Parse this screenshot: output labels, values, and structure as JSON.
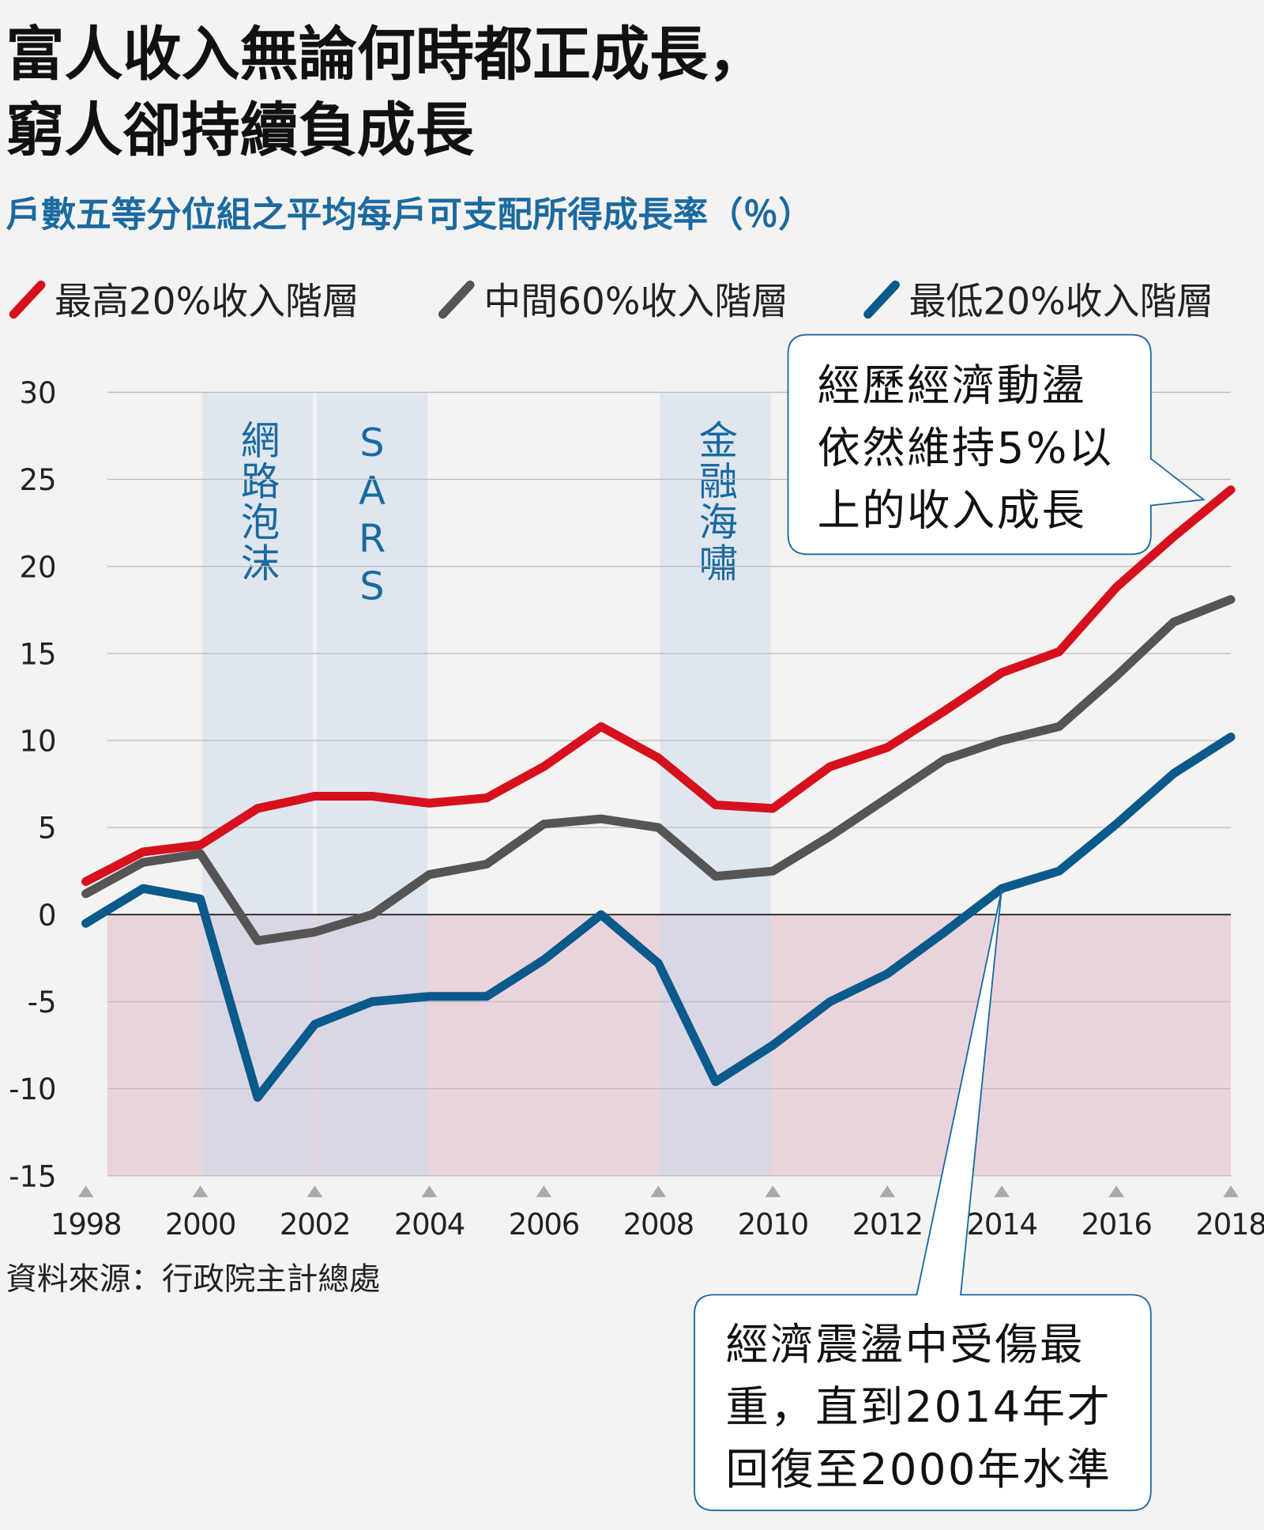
{
  "chart_data": {
    "type": "line",
    "title": [
      "富人收入無論何時都正成長，",
      "窮人卻持續負成長"
    ],
    "subtitle": "戶數五等分位組之平均每戶可支配所得成長率（％）",
    "x": [
      1998,
      1999,
      2000,
      2001,
      2002,
      2003,
      2004,
      2005,
      2006,
      2007,
      2008,
      2009,
      2010,
      2011,
      2012,
      2013,
      2014,
      2015,
      2016,
      2017,
      2018
    ],
    "series": [
      {
        "name": "最高20%收入階層",
        "color": "#d7101e",
        "values": [
          1.9,
          3.6,
          4.0,
          6.1,
          6.8,
          6.8,
          6.4,
          6.7,
          8.5,
          10.8,
          9.0,
          6.3,
          6.1,
          8.5,
          9.6,
          11.7,
          13.9,
          15.1,
          18.8,
          21.7,
          24.4
        ]
      },
      {
        "name": "中間60%收入階層",
        "color": "#555555",
        "values": [
          1.2,
          3.0,
          3.5,
          -1.5,
          -1.0,
          0,
          2.3,
          2.9,
          5.2,
          5.5,
          5.0,
          2.2,
          2.5,
          4.5,
          6.7,
          8.9,
          10.0,
          10.8,
          13.7,
          16.8,
          18.1
        ]
      },
      {
        "name": "最低20%收入階層",
        "color": "#0a5a8c",
        "values": [
          -0.5,
          1.5,
          0.9,
          -10.5,
          -6.3,
          -5.0,
          -4.7,
          -4.7,
          -2.6,
          0,
          -2.8,
          -9.6,
          -7.5,
          -5.0,
          -3.4,
          -1.0,
          1.5,
          2.5,
          5.2,
          8.1,
          10.2
        ]
      }
    ],
    "xlim": [
      1998,
      2018
    ],
    "xticks": [
      1998,
      2000,
      2002,
      2004,
      2006,
      2008,
      2010,
      2012,
      2014,
      2016,
      2018
    ],
    "ylim": [
      -15,
      30
    ],
    "yticks": [
      -15,
      -10,
      -5,
      0,
      5,
      10,
      15,
      20,
      25,
      30
    ],
    "grid": true,
    "shaded_periods": [
      {
        "label": "網路泡沫",
        "start": 2000,
        "end": 2002
      },
      {
        "label": "SARS",
        "start": 2002,
        "end": 2004
      },
      {
        "label": "金融海嘯",
        "start": 2008,
        "end": 2010
      }
    ],
    "annotations": [
      {
        "lines": [
          "經歷經濟動盪",
          "依然維持5%以",
          "上的收入成長"
        ]
      },
      {
        "lines": [
          "經濟震盪中受傷最",
          "重，直到2014年才",
          "回復至2000年水準"
        ]
      }
    ],
    "source": "資料來源：行政院主計總處"
  }
}
